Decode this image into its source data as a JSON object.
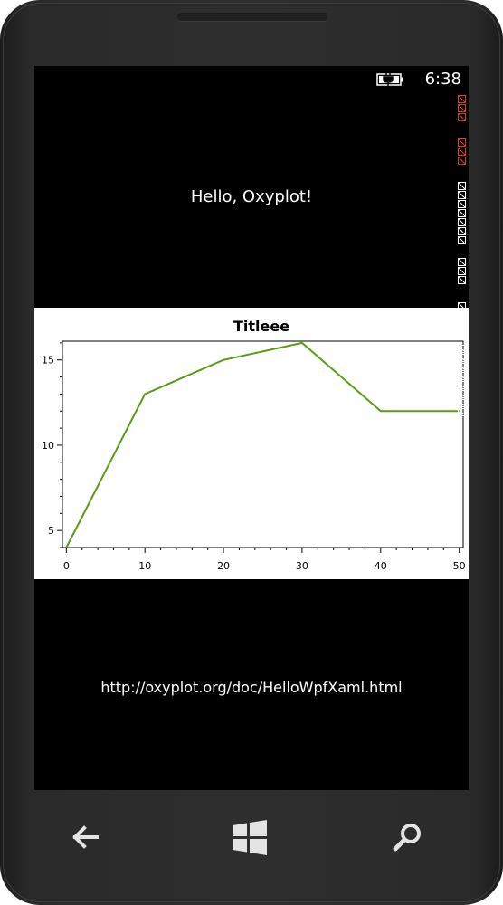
{
  "status_bar": {
    "time": "6:38"
  },
  "main": {
    "greeting": "Hello, Oxyplot!",
    "url": "http://oxyplot.org/doc/HelloWpfXaml.html"
  },
  "chart_data": {
    "type": "line",
    "title": "Titleee",
    "xlabel": "",
    "ylabel": "",
    "x": [
      0,
      10,
      20,
      30,
      40,
      50
    ],
    "series": [
      {
        "values": [
          4,
          13,
          15,
          16,
          12,
          12
        ],
        "color": "#5a9c14"
      }
    ],
    "xlim": [
      -0.5,
      50.5
    ],
    "ylim": [
      4,
      16.1
    ],
    "x_ticks": [
      0,
      10,
      20,
      30,
      40,
      50
    ],
    "y_ticks": [
      5,
      10,
      15
    ],
    "grid": false,
    "legend": "none"
  },
  "nav": {
    "back_icon": "back-arrow-icon",
    "start_icon": "windows-logo-icon",
    "search_icon": "search-icon"
  },
  "colors": {
    "screen_bg": "#000000",
    "plot_bg": "#ffffff",
    "series_line": "#5a9c14",
    "counter_red": "#d0402a"
  }
}
